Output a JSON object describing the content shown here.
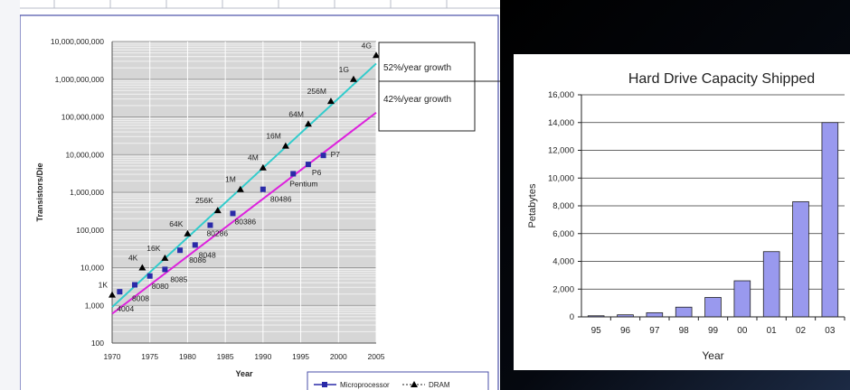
{
  "chart_data": [
    {
      "type": "scatter",
      "scale": "log-y",
      "ylabel": "Transistors/Die",
      "xlabel": "Year",
      "xlim": [
        1970,
        2005
      ],
      "ylim": [
        100,
        10000000000
      ],
      "xticks": [
        "1970",
        "1975",
        "1980",
        "1985",
        "1990",
        "1995",
        "2000",
        "2005"
      ],
      "yticks": [
        "100",
        "1,000",
        "10,000",
        "100,000",
        "1,000,000",
        "10,000,000",
        "100,000,000",
        "1,000,000,000",
        "10,000,000,000"
      ],
      "grid": true,
      "legend_position": "bottom-right",
      "series": [
        {
          "name": "Microprocessor",
          "color": "#2a2aa8",
          "marker": "square",
          "points": [
            {
              "x": 1971,
              "y": 2300,
              "label": "4004"
            },
            {
              "x": 1973,
              "y": 3500,
              "label": "8008"
            },
            {
              "x": 1975,
              "y": 6000,
              "label": "8080"
            },
            {
              "x": 1977,
              "y": 9000,
              "label": "8085"
            },
            {
              "x": 1979,
              "y": 29000,
              "label": "8086"
            },
            {
              "x": 1981,
              "y": 40000,
              "label": "8048"
            },
            {
              "x": 1983,
              "y": 134000,
              "label": "80286"
            },
            {
              "x": 1986,
              "y": 275000,
              "label": "80386"
            },
            {
              "x": 1990,
              "y": 1200000,
              "label": "80486"
            },
            {
              "x": 1994,
              "y": 3100000,
              "label": "Pentium"
            },
            {
              "x": 1996,
              "y": 5500000,
              "label": "P6"
            },
            {
              "x": 1998,
              "y": 9500000,
              "label": "P7"
            }
          ]
        },
        {
          "name": "DRAM",
          "color": "#000000",
          "marker": "triangle",
          "points": [
            {
              "x": 1970,
              "y": 1900,
              "label": "1K"
            },
            {
              "x": 1974,
              "y": 10000,
              "label": "4K"
            },
            {
              "x": 1977,
              "y": 18000,
              "label": "16K"
            },
            {
              "x": 1980,
              "y": 80000,
              "label": "64K"
            },
            {
              "x": 1984,
              "y": 330000,
              "label": "256K"
            },
            {
              "x": 1987,
              "y": 1200000,
              "label": "1M"
            },
            {
              "x": 1990,
              "y": 4500000,
              "label": "4M"
            },
            {
              "x": 1993,
              "y": 17000000,
              "label": "16M"
            },
            {
              "x": 1996,
              "y": 65000000,
              "label": "64M"
            },
            {
              "x": 1999,
              "y": 260000000,
              "label": "256M"
            },
            {
              "x": 2002,
              "y": 1000000000,
              "label": "1G"
            },
            {
              "x": 2005,
              "y": 4300000000,
              "label": "4G"
            }
          ]
        }
      ],
      "trendlines": [
        {
          "name": "DRAM trend",
          "color": "#33cccc",
          "from": {
            "x": 1970,
            "y": 900
          },
          "to": {
            "x": 2005,
            "y": 2600000000
          }
        },
        {
          "name": "Microprocessor trend",
          "color": "#dd22dd",
          "from": {
            "x": 1970,
            "y": 600
          },
          "to": {
            "x": 2005,
            "y": 130000000
          }
        }
      ],
      "annotations": [
        "52%/year growth",
        "42%/year growth"
      ]
    },
    {
      "type": "bar",
      "title": "Hard Drive Capacity Shipped",
      "xlabel": "Year",
      "ylabel": "Petabytes",
      "categories": [
        "95",
        "96",
        "97",
        "98",
        "99",
        "00",
        "01",
        "02",
        "03"
      ],
      "values": [
        80,
        150,
        300,
        700,
        1400,
        2600,
        4700,
        8300,
        14000
      ],
      "ylim": [
        0,
        16000
      ],
      "yticks": [
        "0",
        "2,000",
        "4,000",
        "6,000",
        "8,000",
        "10,000",
        "12,000",
        "14,000",
        "16,000"
      ],
      "bar_color": "#9999ee",
      "grid": true
    }
  ]
}
